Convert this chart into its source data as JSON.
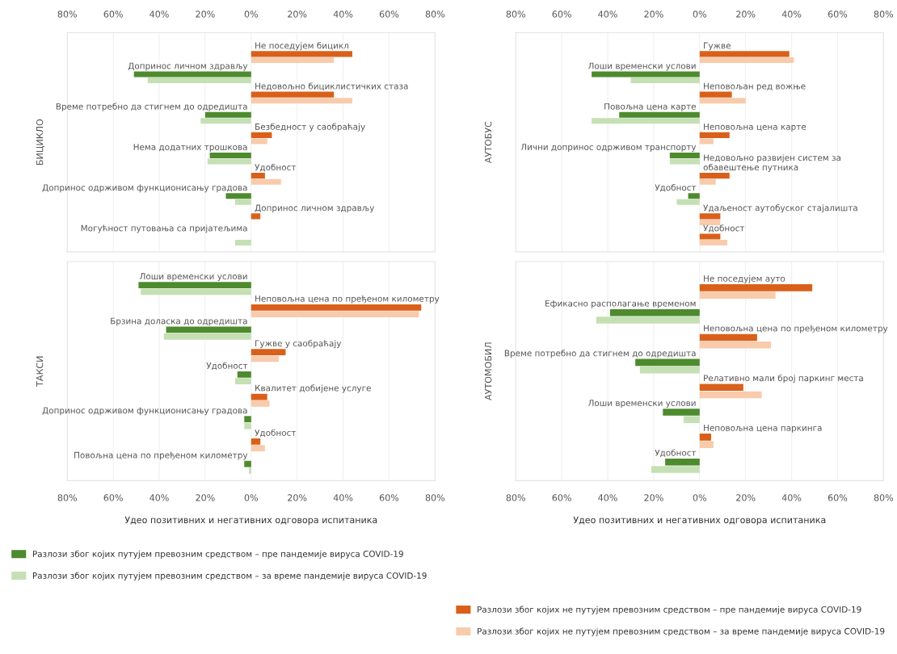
{
  "chart_data": [
    {
      "type": "bar",
      "orientation": "horizontal",
      "ylabel": "БИЦИКЛО",
      "grid": "x",
      "categories": [
        "Не поседујем бицикл",
        "Допринос личном здрављу",
        "Недовољно бициклистичких стаза",
        "Време потребно да стигнем до одредишта",
        "Безбедност у саобраћају",
        "Нема додатних трошкова",
        "Удобност",
        "Допринос одрживом функционисању градова",
        "Допринос личном здрављу",
        "Могућност путовања са пријатељима"
      ],
      "series": [
        {
          "color": "#4e8a2e",
          "values": [
            null,
            -51,
            null,
            -20,
            null,
            -18,
            null,
            -11,
            null,
            null
          ]
        },
        {
          "color": "#c5e0b4",
          "values": [
            null,
            -45,
            null,
            -22,
            null,
            -19,
            null,
            -7,
            null,
            -7
          ]
        },
        {
          "color": "#d9601a",
          "values": [
            44,
            null,
            36,
            null,
            9,
            null,
            6,
            null,
            4,
            null
          ]
        },
        {
          "color": "#f8cbad",
          "values": [
            36,
            null,
            44,
            null,
            7,
            null,
            13,
            null,
            null,
            null
          ]
        }
      ],
      "xlim": [
        -80,
        80
      ],
      "xticks": [
        {
          "value": -80,
          "label": "80%"
        },
        {
          "value": -60,
          "label": "60%"
        },
        {
          "value": -40,
          "label": "40%"
        },
        {
          "value": -20,
          "label": "20%"
        },
        {
          "value": 0,
          "label": "0%"
        },
        {
          "value": 20,
          "label": "20%"
        },
        {
          "value": 40,
          "label": "40%"
        },
        {
          "value": 60,
          "label": "60%"
        },
        {
          "value": 80,
          "label": "80%"
        }
      ]
    },
    {
      "type": "bar",
      "orientation": "horizontal",
      "ylabel": "АУТОБУС",
      "grid": "x",
      "categories": [
        "Гужве",
        "Лоши временски услови",
        "Неповољан ред вожње",
        "Повољна цена карте",
        "Неповољна цена карте",
        "Лични допринос одрживом транспорту",
        "Недовољно развијен систем за обавештење путника",
        "Удобност",
        "Удаљеност аутобуског стајалишта",
        "Удобност"
      ],
      "series": [
        {
          "color": "#4e8a2e",
          "values": [
            null,
            -47,
            null,
            -35,
            null,
            -13,
            null,
            -5,
            null,
            null
          ]
        },
        {
          "color": "#c5e0b4",
          "values": [
            null,
            -30,
            null,
            -47,
            null,
            -13,
            null,
            -10,
            null,
            null
          ]
        },
        {
          "color": "#d9601a",
          "values": [
            39,
            null,
            14,
            null,
            13,
            null,
            13,
            null,
            9,
            9
          ]
        },
        {
          "color": "#f8cbad",
          "values": [
            41,
            null,
            20,
            null,
            6,
            null,
            7,
            null,
            9,
            12
          ]
        }
      ],
      "xlim": [
        -80,
        80
      ],
      "xticks": [
        {
          "value": -80,
          "label": "80%"
        },
        {
          "value": -60,
          "label": "60%"
        },
        {
          "value": -40,
          "label": "40%"
        },
        {
          "value": -20,
          "label": "20%"
        },
        {
          "value": 0,
          "label": "0%"
        },
        {
          "value": 20,
          "label": "20%"
        },
        {
          "value": 40,
          "label": "40%"
        },
        {
          "value": 60,
          "label": "60%"
        },
        {
          "value": 80,
          "label": "80%"
        }
      ]
    },
    {
      "type": "bar",
      "orientation": "horizontal",
      "ylabel": "ТАКСИ",
      "xlabel": "Удео позитивних и негативних одговора испитаника",
      "grid": "x",
      "categories": [
        "Лоши временски услови",
        "Неповољна цена по пређеном километру",
        "Брзина доласка до одредишта",
        "Гужве у саобраћају",
        "Удобност",
        "Квалитет добијене услуге",
        "Допринос одрживом функционисању градова",
        "Удобност",
        "Повољна цена по пређеном километру"
      ],
      "series": [
        {
          "color": "#4e8a2e",
          "values": [
            -49,
            null,
            -37,
            null,
            -6,
            null,
            -3,
            null,
            -3
          ]
        },
        {
          "color": "#c5e0b4",
          "values": [
            -48,
            null,
            -38,
            null,
            -7,
            null,
            -3,
            null,
            -1
          ]
        },
        {
          "color": "#d9601a",
          "values": [
            null,
            74,
            null,
            15,
            null,
            7,
            null,
            4,
            null
          ]
        },
        {
          "color": "#f8cbad",
          "values": [
            null,
            73,
            null,
            12,
            null,
            8,
            null,
            6,
            null
          ]
        }
      ],
      "xlim": [
        -80,
        80
      ],
      "xticks": [
        {
          "value": -80,
          "label": "80%"
        },
        {
          "value": -60,
          "label": "60%"
        },
        {
          "value": -40,
          "label": "40%"
        },
        {
          "value": -20,
          "label": "20%"
        },
        {
          "value": 0,
          "label": "0%"
        },
        {
          "value": 20,
          "label": "20%"
        },
        {
          "value": 40,
          "label": "40%"
        },
        {
          "value": 60,
          "label": "60%"
        },
        {
          "value": 80,
          "label": "80%"
        }
      ]
    },
    {
      "type": "bar",
      "orientation": "horizontal",
      "ylabel": "АУТОМОБИЛ",
      "xlabel": "Удео позитивних и негативних одговора испитаника",
      "grid": "x",
      "legend": "bottom",
      "categories": [
        "Не поседујем ауто",
        "Ефикасно располагање временом",
        "Неповољна цена по пређеном километру",
        "Време потребно да стигнем до одредишта",
        "Релативно мали број паркинг места",
        "Лоши временски услови",
        "Неповољна цена паркинга",
        "Удобност"
      ],
      "series": [
        {
          "name": "Разлози због којих путујем превозним средством – пре пандемије вируса COVID-19",
          "color": "#4e8a2e",
          "values": [
            null,
            -39,
            null,
            -28,
            null,
            -16,
            null,
            -15
          ]
        },
        {
          "name": "Разлози због којих путујем превозним средством – за време пандемије вируса COVID-19",
          "color": "#c5e0b4",
          "values": [
            null,
            -45,
            null,
            -26,
            null,
            -7,
            null,
            -21
          ]
        },
        {
          "name": "Разлози због којих не путујем превозним средством – пре пандемије вируса COVID-19",
          "color": "#d9601a",
          "values": [
            49,
            null,
            25,
            null,
            19,
            null,
            5,
            null
          ]
        },
        {
          "name": "Разлози због којих не путујем превозним средством – за време пандемије вируса COVID-19",
          "color": "#f8cbad",
          "values": [
            33,
            null,
            31,
            null,
            27,
            null,
            6,
            null
          ]
        }
      ],
      "xlim": [
        -80,
        80
      ],
      "xticks": [
        {
          "value": -80,
          "label": "80%"
        },
        {
          "value": -60,
          "label": "60%"
        },
        {
          "value": -40,
          "label": "40%"
        },
        {
          "value": -20,
          "label": "20%"
        },
        {
          "value": 0,
          "label": "0%"
        },
        {
          "value": 20,
          "label": "20%"
        },
        {
          "value": 40,
          "label": "40%"
        },
        {
          "value": 60,
          "label": "60%"
        },
        {
          "value": 80,
          "label": "80%"
        }
      ]
    }
  ]
}
